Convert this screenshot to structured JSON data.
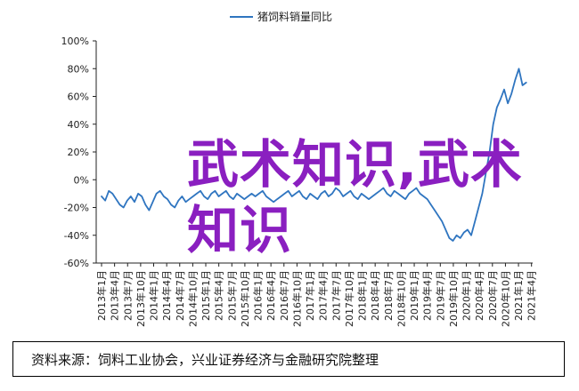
{
  "overlay_text": "武术知识,武术知识",
  "source_text": "资料来源：饲料工业协会，兴业证券经济与金融研究院整理",
  "colors": {
    "line": "#2f75c0",
    "axis": "#222222",
    "overlay": "#8a1fc0"
  },
  "chart_data": {
    "type": "line",
    "title": "",
    "xlabel": "",
    "ylabel": "",
    "ylim": [
      -60,
      100
    ],
    "yticks": [
      "100%",
      "80%",
      "60%",
      "40%",
      "20%",
      "0%",
      "-20%",
      "-40%",
      "-60%"
    ],
    "ytick_values": [
      100,
      80,
      60,
      40,
      20,
      0,
      -20,
      -40,
      -60
    ],
    "xticks": [
      "2013年1月",
      "2013年4月",
      "2013年7月",
      "2013年10月",
      "2014年1月",
      "2014年4月",
      "2014年7月",
      "2014年10月",
      "2015年1月",
      "2015年4月",
      "2015年7月",
      "2015年10月",
      "2016年1月",
      "2016年4月",
      "2016年7月",
      "2016年10月",
      "2017年1月",
      "2017年4月",
      "2017年7月",
      "2017年10月",
      "2018年1月",
      "2018年4月",
      "2018年7月",
      "2018年10月",
      "2019年1月",
      "2019年4月",
      "2019年7月",
      "2019年10月",
      "2020年1月",
      "2020年4月",
      "2020年7月",
      "2020年10月",
      "2021年1月",
      "2021年4月"
    ],
    "grid": false,
    "legend": "top-center",
    "series": [
      {
        "name": "猪饲料销量同比",
        "values": [
          -12,
          -15,
          -8,
          -10,
          -14,
          -18,
          -20,
          -15,
          -12,
          -16,
          -10,
          -12,
          -18,
          -22,
          -16,
          -10,
          -8,
          -12,
          -14,
          -18,
          -20,
          -15,
          -12,
          -16,
          -14,
          -12,
          -10,
          -8,
          -12,
          -14,
          -10,
          -8,
          -12,
          -10,
          -8,
          -12,
          -14,
          -10,
          -12,
          -14,
          -12,
          -10,
          -12,
          -10,
          -8,
          -12,
          -14,
          -16,
          -14,
          -12,
          -10,
          -8,
          -12,
          -10,
          -8,
          -12,
          -14,
          -10,
          -12,
          -14,
          -10,
          -8,
          -12,
          -10,
          -6,
          -8,
          -12,
          -10,
          -8,
          -12,
          -14,
          -10,
          -12,
          -14,
          -12,
          -10,
          -8,
          -6,
          -10,
          -12,
          -8,
          -10,
          -12,
          -14,
          -10,
          -8,
          -6,
          -10,
          -12,
          -14,
          -18,
          -22,
          -26,
          -30,
          -36,
          -42,
          -44,
          -40,
          -42,
          -38,
          -36,
          -40,
          -30,
          -20,
          -10,
          5,
          20,
          40,
          52,
          58,
          65,
          55,
          62,
          72,
          80,
          68,
          70
        ]
      }
    ]
  }
}
